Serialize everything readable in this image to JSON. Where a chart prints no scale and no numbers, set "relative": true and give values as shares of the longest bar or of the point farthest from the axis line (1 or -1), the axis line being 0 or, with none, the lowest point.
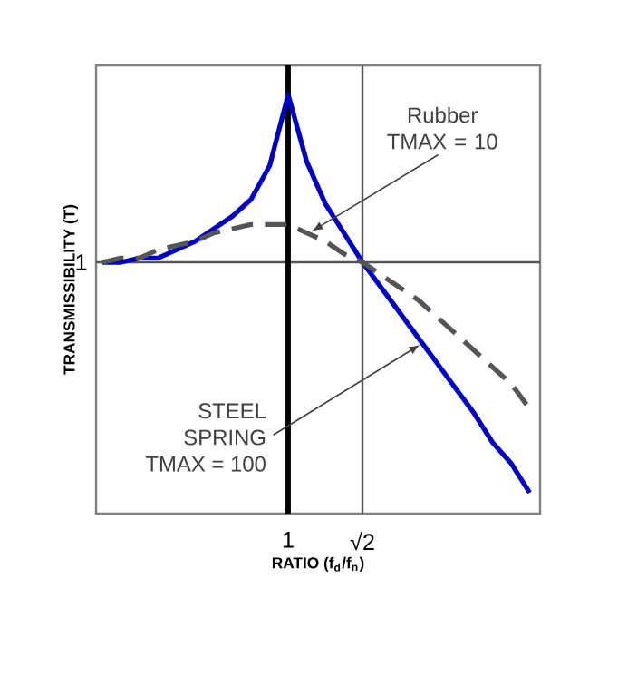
{
  "chart_data": {
    "type": "line",
    "relative": true,
    "xlabel": "RATIO (f$_{d}$/f$_{n}$)",
    "ylabel": "TRANSMISSIBILITY (T)",
    "categories": [
      null,
      null,
      null,
      null,
      null,
      null,
      null,
      null,
      null,
      null,
      "1",
      null,
      null,
      null,
      "√2",
      null,
      null,
      null,
      null,
      null,
      null,
      null,
      null,
      null
    ],
    "marker": "none",
    "series": [
      {
        "color": "#0000cc",
        "line_style": "solid",
        "values": [
          0.6,
          0.6,
          0.61,
          0.61,
          0.63,
          0.65,
          0.68,
          0.71,
          0.75,
          0.83,
          1,
          0.84,
          0.74,
          0.67,
          0.6,
          0.54,
          0.48,
          0.42,
          0.36,
          0.3,
          0.24,
          0.17,
          0.12,
          0.05
        ]
      },
      {
        "color": "#555555",
        "line_style": "dashed",
        "values": [
          0.6,
          0.61,
          0.61,
          0.63,
          0.64,
          0.65,
          0.67,
          0.68,
          0.69,
          0.69,
          0.69,
          0.67,
          0.65,
          0.62,
          0.6,
          0.57,
          0.54,
          0.51,
          0.47,
          0.43,
          0.39,
          0.35,
          0.31,
          0.25
        ]
      }
    ],
    "ref_lines": [
      {
        "axis": "y",
        "value": 0.6,
        "label": "1",
        "color": "#555555"
      },
      {
        "axis": "x",
        "value": "1",
        "color": "#000000"
      },
      {
        "axis": "x",
        "value": "√2",
        "color": "#555555"
      }
    ],
    "annotations": [
      "Rubber TMAX = 10",
      "STEEL SPRING TMAX = 100"
    ]
  }
}
